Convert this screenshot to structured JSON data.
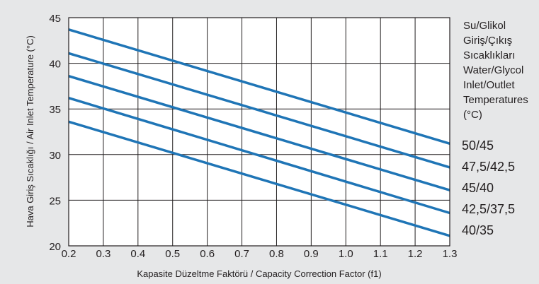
{
  "chart_data": {
    "type": "line",
    "xlabel": "Kapasite Düzeltme Faktörü / Capacity Correction Factor (f1)",
    "ylabel": "Hava Giriş Sıcaklığı / Air Inlet Temperature (°C)",
    "xlim": [
      0.2,
      1.3
    ],
    "ylim": [
      20,
      45
    ],
    "xticks": [
      "0.2",
      "0.3",
      "0.4",
      "0.5",
      "0.6",
      "0.7",
      "0.8",
      "0.9",
      "1.0",
      "1.1",
      "1.2",
      "1.3"
    ],
    "yticks": [
      "20",
      "25",
      "30",
      "35",
      "40",
      "45"
    ],
    "grid": true,
    "legend_position": "right",
    "legend_title_lines": [
      "Su/Glikol",
      "Giriş/Çıkış",
      "Sıcaklıkları",
      "Water/Glycol",
      "Inlet/Outlet",
      "Temperatures",
      "(°C)"
    ],
    "line_color": "#1f75b6",
    "series": [
      {
        "name": "50/45",
        "x": [
          0.2,
          1.3
        ],
        "y": [
          43.7,
          31.2
        ]
      },
      {
        "name": "47,5/42,5",
        "x": [
          0.2,
          1.3
        ],
        "y": [
          41.1,
          28.6
        ]
      },
      {
        "name": "45/40",
        "x": [
          0.2,
          1.3
        ],
        "y": [
          38.6,
          26.1
        ]
      },
      {
        "name": "42,5/37,5",
        "x": [
          0.2,
          1.3
        ],
        "y": [
          36.2,
          23.6
        ]
      },
      {
        "name": "40/35",
        "x": [
          0.2,
          1.3
        ],
        "y": [
          33.6,
          21.1
        ]
      }
    ]
  }
}
